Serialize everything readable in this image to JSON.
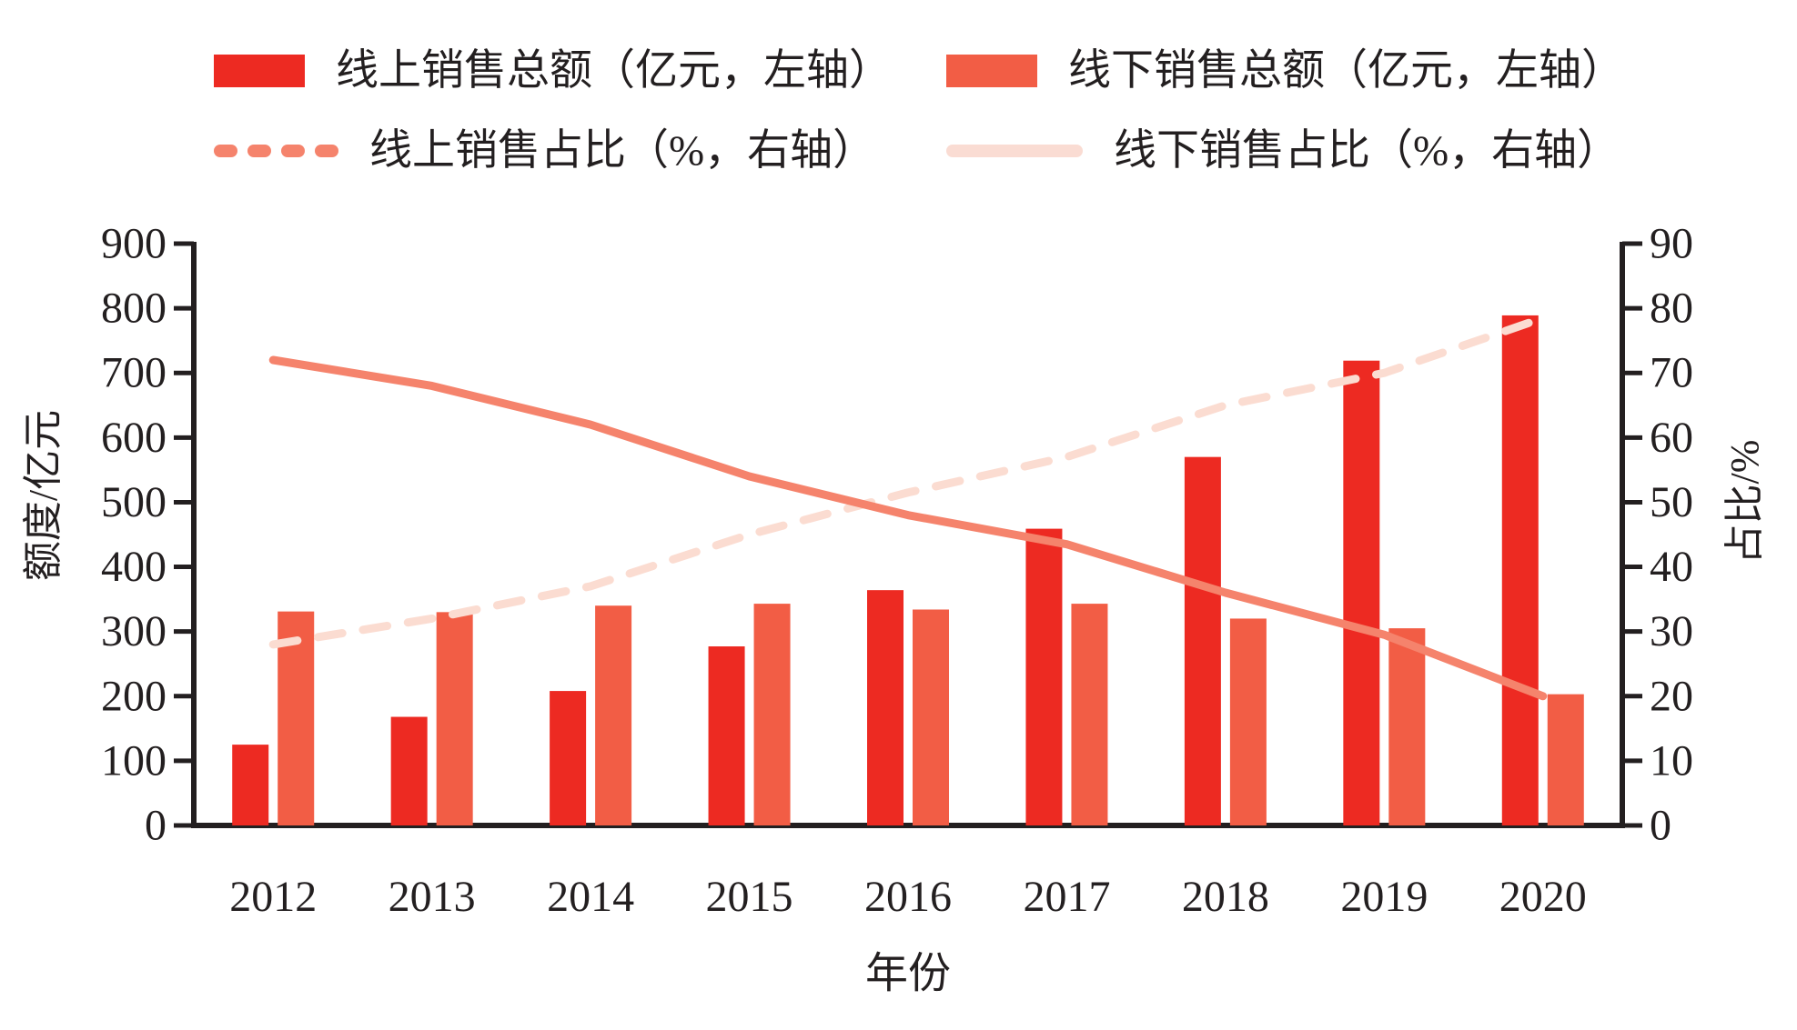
{
  "legend": [
    {
      "label": "线上销售总额（亿元，左轴）",
      "swatch": "rect",
      "color": "#ed2a22"
    },
    {
      "label": "线下销售总额（亿元，左轴）",
      "swatch": "rect",
      "color": "#f25d45"
    },
    {
      "label": "线上销售占比（%，右轴）",
      "swatch": "dashed-line",
      "color": "#f5836c"
    },
    {
      "label": "线下销售占比（%，右轴）",
      "swatch": "solid-line",
      "color": "#fadcd3"
    }
  ],
  "axes": {
    "left_title": "额度/亿元",
    "right_title": "占比/%",
    "x_title": "年份"
  },
  "chart_data": {
    "type": "combo-bar-line",
    "categories": [
      "2012",
      "2013",
      "2014",
      "2015",
      "2016",
      "2017",
      "2018",
      "2019",
      "2020"
    ],
    "left_axis": {
      "label": "额度/亿元",
      "min": 0,
      "max": 900,
      "step": 100,
      "ticks": [
        "0",
        "100",
        "200",
        "300",
        "400",
        "500",
        "600",
        "700",
        "800",
        "900"
      ]
    },
    "right_axis": {
      "label": "占比/%",
      "min": 0,
      "max": 90,
      "step": 10,
      "ticks": [
        "0",
        "10",
        "20",
        "30",
        "40",
        "50",
        "60",
        "70",
        "80",
        "90"
      ]
    },
    "x_axis": {
      "label": "年份"
    },
    "series": [
      {
        "name": "线上销售总额（亿元，左轴）",
        "type": "bar",
        "axis": "left",
        "color": "#ed2a22",
        "values": [
          125,
          168,
          208,
          277,
          364,
          459,
          570,
          719,
          789
        ]
      },
      {
        "name": "线下销售总额（亿元，左轴）",
        "type": "bar",
        "axis": "left",
        "color": "#f25d45",
        "values": [
          331,
          330,
          340,
          343,
          334,
          343,
          320,
          305,
          203
        ]
      },
      {
        "name": "线上销售占比（%，右轴）",
        "type": "line",
        "style": "dashed",
        "axis": "right",
        "color": "#fbdcd1",
        "values": [
          28,
          32,
          37,
          45,
          51.5,
          57,
          65,
          70,
          78.5
        ]
      },
      {
        "name": "线下销售占比（%，右轴）",
        "type": "line",
        "style": "solid",
        "axis": "right",
        "color": "#f5836c",
        "values": [
          72,
          68,
          62,
          54,
          48,
          43.5,
          36,
          29.5,
          20
        ]
      }
    ],
    "legend_position": "top",
    "grid": false,
    "axis_color": "#231f20"
  }
}
